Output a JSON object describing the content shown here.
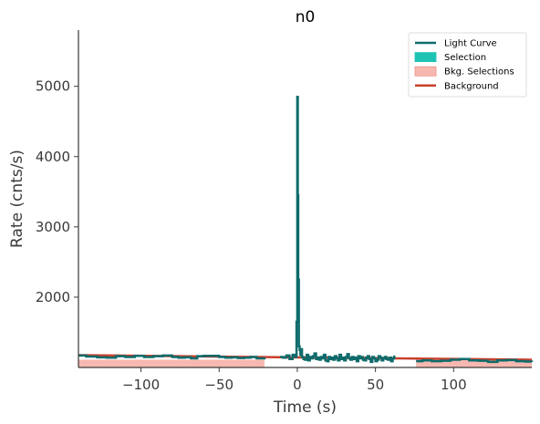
{
  "chart_data": {
    "type": "line",
    "title": "n0",
    "xlabel": "Time (s)",
    "ylabel": "Rate (cnts/s)",
    "xlim": [
      -140,
      150
    ],
    "ylim": [
      1000,
      5800
    ],
    "xticks": [
      -100,
      -50,
      0,
      50,
      100
    ],
    "yticks": [
      2000,
      3000,
      4000,
      5000
    ],
    "xtick_labels": [
      "−100",
      "−50",
      "0",
      "50",
      "100"
    ],
    "ytick_labels": [
      "2000",
      "3000",
      "4000",
      "5000"
    ],
    "grid": false,
    "legend_position": "top-right",
    "legend": [
      {
        "label": "Light Curve",
        "kind": "line",
        "color": "#0e6b6b"
      },
      {
        "label": "Selection",
        "kind": "patch",
        "color": "#1ec3b4"
      },
      {
        "label": "Bkg. Selections",
        "kind": "patch",
        "color": "#f6b8b0"
      },
      {
        "label": "Background",
        "kind": "line",
        "color": "#c8402d"
      }
    ],
    "bkg_selections": [
      [
        -140,
        -21
      ],
      [
        76,
        150
      ]
    ],
    "background": {
      "x": [
        -140,
        150
      ],
      "y": [
        1175,
        1110
      ]
    },
    "light_curve": {
      "x": [
        -140,
        -135,
        -128,
        -122,
        -116,
        -110,
        -104,
        -98,
        -92,
        -86,
        -80,
        -76,
        -72,
        -68,
        -64,
        -60,
        -56,
        -50,
        -46,
        -42,
        -38,
        -34,
        -30,
        -26,
        -21
      ],
      "y": [
        1170,
        1155,
        1145,
        1140,
        1160,
        1150,
        1165,
        1150,
        1160,
        1170,
        1150,
        1140,
        1145,
        1130,
        1160,
        1165,
        1165,
        1150,
        1140,
        1145,
        1135,
        1140,
        1150,
        1130,
        1145
      ]
    },
    "light_curve_post": {
      "x": [
        76,
        80,
        86,
        92,
        98,
        104,
        110,
        116,
        122,
        128,
        134,
        140,
        146,
        150
      ],
      "y": [
        1090,
        1100,
        1090,
        1095,
        1110,
        1120,
        1100,
        1095,
        1080,
        1100,
        1105,
        1090,
        1085,
        1080
      ]
    },
    "selection_curve": {
      "x": [
        -11,
        -9,
        -7,
        -5,
        -3,
        -2,
        -1,
        -0.5,
        0,
        0.3,
        0.6,
        1,
        1.5,
        2,
        2.5,
        3,
        4,
        5,
        6,
        7,
        8,
        9,
        10,
        11,
        12,
        13,
        14,
        15,
        16,
        17,
        18,
        19,
        20,
        21,
        22,
        23,
        24,
        25,
        26,
        27,
        28,
        29,
        30,
        31,
        32,
        33,
        34,
        35,
        36,
        37,
        38,
        39,
        40,
        41,
        42,
        43,
        44,
        45,
        46,
        47,
        48,
        49,
        50,
        51,
        52,
        53,
        54,
        55,
        56,
        57,
        58,
        59,
        60,
        61,
        62
      ],
      "y": [
        1150,
        1140,
        1170,
        1120,
        1180,
        1160,
        1150,
        1650,
        4850,
        3450,
        2250,
        1300,
        1250,
        1180,
        1260,
        1150,
        1120,
        1110,
        1180,
        1100,
        1150,
        1130,
        1160,
        1200,
        1120,
        1140,
        1110,
        1150,
        1130,
        1180,
        1100,
        1090,
        1150,
        1120,
        1140,
        1110,
        1160,
        1130,
        1100,
        1180,
        1120,
        1140,
        1100,
        1150,
        1190,
        1130,
        1110,
        1150,
        1120,
        1140,
        1090,
        1160,
        1130,
        1150,
        1110,
        1100,
        1140,
        1160,
        1120,
        1080,
        1150,
        1130,
        1090,
        1110,
        1160,
        1140,
        1100,
        1130,
        1150,
        1120,
        1110,
        1140,
        1090,
        1130,
        1170
      ]
    }
  }
}
